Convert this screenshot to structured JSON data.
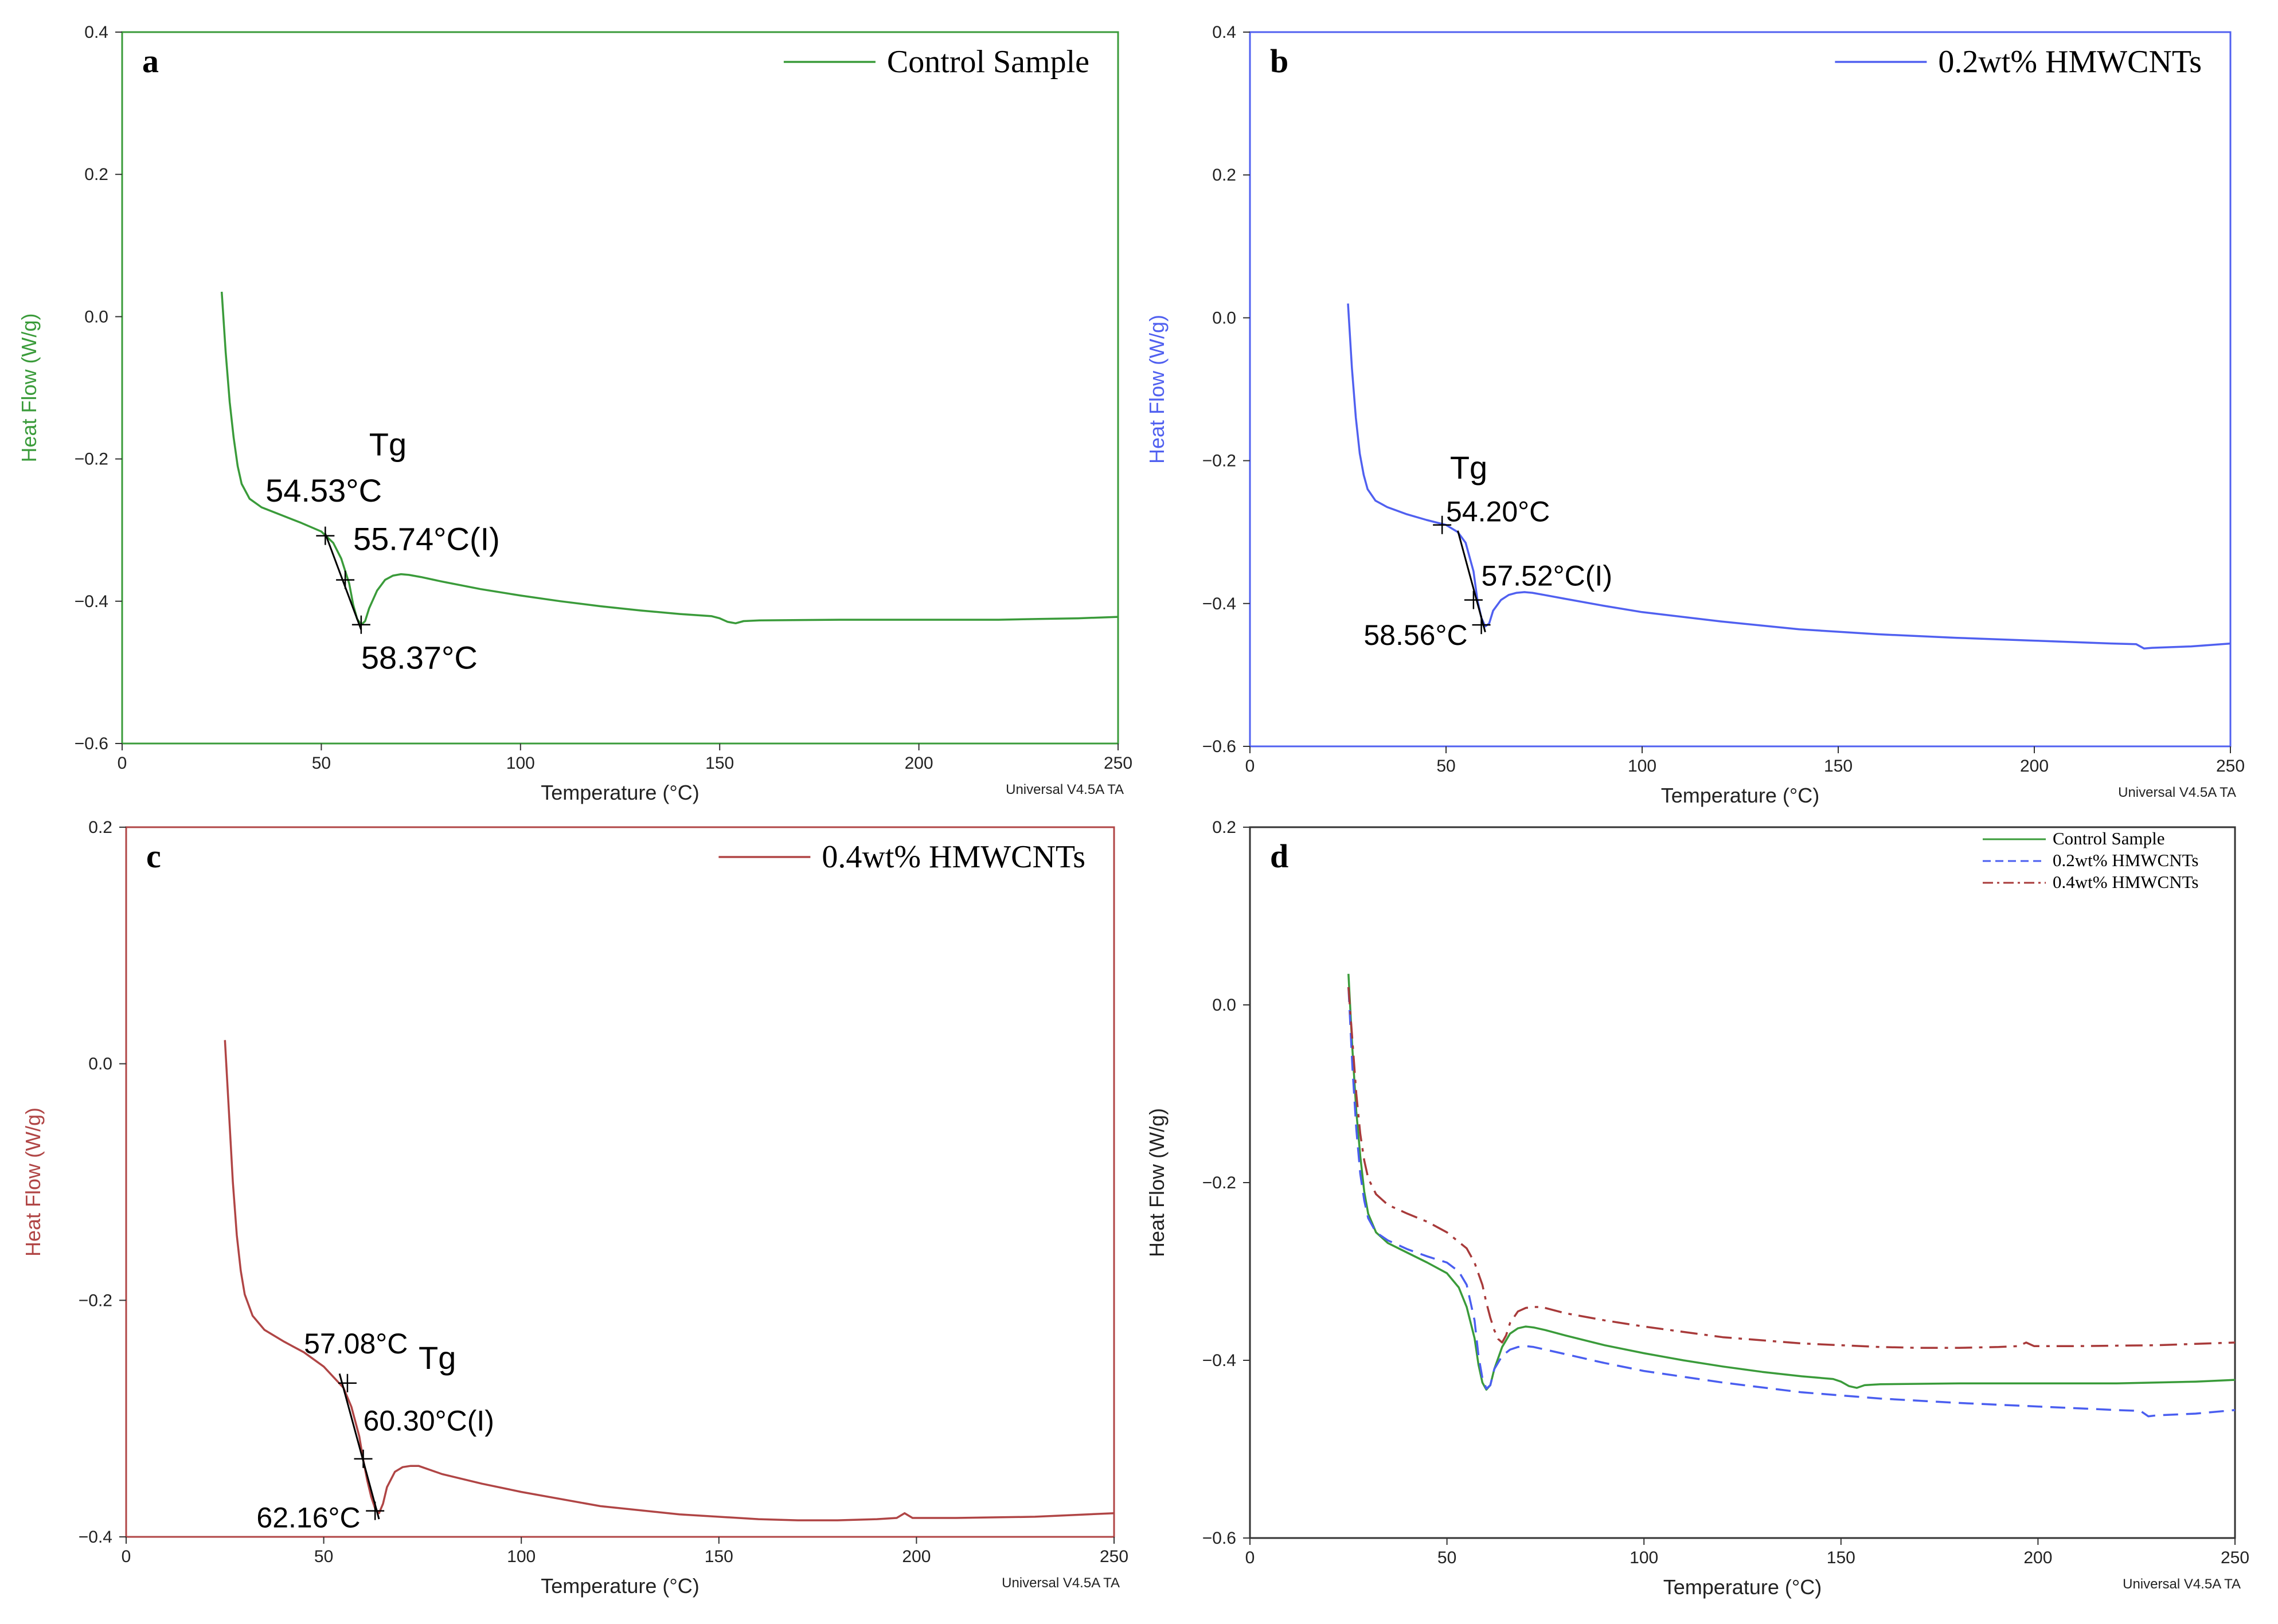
{
  "figure": {
    "footer_text": "Universal V4.5A TA"
  },
  "chart_data": [
    {
      "id": "a",
      "type": "line",
      "panel_label": "a",
      "xlabel": "Temperature (°C)",
      "ylabel": "Heat Flow (W/g)",
      "color": "#3a9b3a",
      "xlim": [
        0,
        250
      ],
      "ylim": [
        -0.6,
        0.4
      ],
      "xticks": [
        0,
        50,
        100,
        150,
        200,
        250
      ],
      "yticks": [
        -0.6,
        -0.4,
        -0.2,
        0.0,
        0.2,
        0.4
      ],
      "ytick_labels": [
        "−0.6",
        "−0.4",
        "−0.2",
        "0.0",
        "0.2",
        "0.4"
      ],
      "legend": {
        "position": "top-right",
        "entries": [
          {
            "label": "Control Sample",
            "style": "solid"
          }
        ]
      },
      "series": [
        {
          "name": "Control Sample",
          "style": "solid",
          "x": [
            25,
            26,
            27,
            28,
            29,
            30,
            32,
            35,
            40,
            45,
            50,
            53,
            55,
            57,
            58,
            59,
            60,
            61,
            62,
            64,
            66,
            68,
            70,
            72,
            75,
            80,
            90,
            100,
            110,
            120,
            130,
            140,
            148,
            150,
            152,
            154,
            156,
            160,
            180,
            200,
            220,
            230,
            240,
            250
          ],
          "y": [
            0.035,
            -0.05,
            -0.12,
            -0.17,
            -0.21,
            -0.235,
            -0.256,
            -0.268,
            -0.279,
            -0.29,
            -0.302,
            -0.318,
            -0.34,
            -0.375,
            -0.405,
            -0.425,
            -0.433,
            -0.428,
            -0.41,
            -0.385,
            -0.37,
            -0.364,
            -0.362,
            -0.363,
            -0.366,
            -0.372,
            -0.383,
            -0.392,
            -0.4,
            -0.407,
            -0.413,
            -0.418,
            -0.421,
            -0.424,
            -0.429,
            -0.431,
            -0.428,
            -0.427,
            -0.426,
            -0.426,
            -0.426,
            -0.425,
            -0.424,
            -0.422
          ]
        }
      ],
      "annotations": [
        {
          "text": "Tg",
          "x": 62,
          "y": -0.195,
          "cls": "annot"
        },
        {
          "text": "54.53°C",
          "x": 36,
          "y": -0.26,
          "cls": "annot"
        },
        {
          "text": "55.74°C(I)",
          "x": 58,
          "y": -0.328,
          "cls": "annot"
        },
        {
          "text": "58.37°C",
          "x": 60,
          "y": -0.495,
          "cls": "annot"
        }
      ],
      "markers": [
        {
          "x": 51,
          "y": -0.308
        },
        {
          "x": 56,
          "y": -0.37
        },
        {
          "x": 60,
          "y": -0.433
        }
      ],
      "tangent": {
        "x": [
          51,
          60
        ],
        "y": [
          -0.305,
          -0.44
        ]
      }
    },
    {
      "id": "b",
      "type": "line",
      "panel_label": "b",
      "xlabel": "Temperature (°C)",
      "ylabel": "Heat Flow (W/g)",
      "color": "#5060f0",
      "xlim": [
        0,
        250
      ],
      "ylim": [
        -0.6,
        0.4
      ],
      "xticks": [
        0,
        50,
        100,
        150,
        200,
        250
      ],
      "yticks": [
        -0.6,
        -0.4,
        -0.2,
        0.0,
        0.2,
        0.4
      ],
      "ytick_labels": [
        "−0.6",
        "−0.4",
        "−0.2",
        "0.0",
        "0.2",
        "0.4"
      ],
      "legend": {
        "position": "top-right",
        "entries": [
          {
            "label": "0.2wt% HMWCNTs",
            "style": "solid"
          }
        ]
      },
      "series": [
        {
          "name": "0.2wt% HMWCNTs",
          "style": "solid",
          "x": [
            25,
            26,
            27,
            28,
            29,
            30,
            32,
            35,
            40,
            45,
            50,
            53,
            55,
            57,
            58,
            59,
            60,
            61,
            62,
            64,
            66,
            68,
            70,
            72,
            75,
            80,
            90,
            100,
            120,
            140,
            160,
            180,
            200,
            220,
            226,
            228,
            230,
            240,
            250
          ],
          "y": [
            0.02,
            -0.07,
            -0.14,
            -0.19,
            -0.22,
            -0.24,
            -0.256,
            -0.265,
            -0.275,
            -0.283,
            -0.29,
            -0.3,
            -0.315,
            -0.355,
            -0.395,
            -0.42,
            -0.432,
            -0.428,
            -0.41,
            -0.395,
            -0.388,
            -0.385,
            -0.384,
            -0.385,
            -0.388,
            -0.393,
            -0.403,
            -0.412,
            -0.425,
            -0.436,
            -0.443,
            -0.448,
            -0.452,
            -0.456,
            -0.457,
            -0.463,
            -0.462,
            -0.46,
            -0.456
          ]
        }
      ],
      "annotations": [
        {
          "text": "Tg",
          "x": 51,
          "y": -0.225,
          "cls": "annot"
        },
        {
          "text": "54.20°C",
          "x": 50,
          "y": -0.285,
          "cls": "annot-sm"
        },
        {
          "text": "57.52°C(I)",
          "x": 59,
          "y": -0.375,
          "cls": "annot-sm"
        },
        {
          "text": "58.56°C",
          "x": 29,
          "y": -0.458,
          "cls": "annot-sm"
        }
      ],
      "markers": [
        {
          "x": 49,
          "y": -0.29
        },
        {
          "x": 57,
          "y": -0.395
        },
        {
          "x": 59,
          "y": -0.43
        }
      ],
      "tangent": {
        "x": [
          53,
          60
        ],
        "y": [
          -0.298,
          -0.44
        ]
      }
    },
    {
      "id": "c",
      "type": "line",
      "panel_label": "c",
      "xlabel": "Temperature (°C)",
      "ylabel": "Heat Flow (W/g)",
      "color": "#b04545",
      "xlim": [
        0,
        250
      ],
      "ylim": [
        -0.4,
        0.2
      ],
      "xticks": [
        0,
        50,
        100,
        150,
        200,
        250
      ],
      "yticks": [
        -0.4,
        -0.2,
        0.0,
        0.2
      ],
      "ytick_labels": [
        "−0.4",
        "−0.2",
        "0.0",
        "0.2"
      ],
      "legend": {
        "position": "top-right",
        "entries": [
          {
            "label": "0.4wt% HMWCNTs",
            "style": "solid"
          }
        ]
      },
      "series": [
        {
          "name": "0.4wt% HMWCNTs",
          "style": "solid",
          "x": [
            25,
            26,
            27,
            28,
            29,
            30,
            32,
            35,
            40,
            45,
            50,
            55,
            57,
            59,
            60,
            61,
            62,
            63,
            64,
            65,
            66,
            68,
            70,
            72,
            74,
            80,
            90,
            100,
            120,
            140,
            160,
            170,
            180,
            190,
            195,
            197,
            199,
            210,
            230,
            250
          ],
          "y": [
            0.02,
            -0.04,
            -0.1,
            -0.145,
            -0.175,
            -0.195,
            -0.213,
            -0.225,
            -0.235,
            -0.244,
            -0.256,
            -0.274,
            -0.29,
            -0.315,
            -0.335,
            -0.352,
            -0.366,
            -0.376,
            -0.38,
            -0.372,
            -0.358,
            -0.345,
            -0.341,
            -0.34,
            -0.34,
            -0.347,
            -0.355,
            -0.362,
            -0.374,
            -0.381,
            -0.385,
            -0.386,
            -0.386,
            -0.385,
            -0.384,
            -0.38,
            -0.384,
            -0.384,
            -0.383,
            -0.38
          ]
        }
      ],
      "annotations": [
        {
          "text": "57.08°C",
          "x": 45,
          "y": -0.245,
          "cls": "annot-sm"
        },
        {
          "text": "Tg",
          "x": 74,
          "y": -0.258,
          "cls": "annot"
        },
        {
          "text": "60.30°C(I)",
          "x": 60,
          "y": -0.31,
          "cls": "annot-sm"
        },
        {
          "text": "62.16°C",
          "x": 33,
          "y": -0.392,
          "cls": "annot-sm"
        }
      ],
      "markers": [
        {
          "x": 56,
          "y": -0.27
        },
        {
          "x": 60,
          "y": -0.334
        },
        {
          "x": 63,
          "y": -0.378
        }
      ],
      "tangent": {
        "x": [
          54,
          64
        ],
        "y": [
          -0.262,
          -0.385
        ]
      }
    },
    {
      "id": "d",
      "type": "line",
      "panel_label": "d",
      "xlabel": "Temperature (°C)",
      "ylabel": "Heat Flow (W/g)",
      "color": "#222222",
      "xlim": [
        0,
        250
      ],
      "ylim": [
        -0.6,
        0.2
      ],
      "xticks": [
        0,
        50,
        100,
        150,
        200,
        250
      ],
      "yticks": [
        -0.6,
        -0.4,
        -0.2,
        0.0,
        0.2
      ],
      "ytick_labels": [
        "−0.6",
        "−0.4",
        "−0.2",
        "0.0",
        "0.2"
      ],
      "legend": {
        "position": "top-right",
        "entries": [
          {
            "label": "Control Sample",
            "style": "solid"
          },
          {
            "label": "0.2wt% HMWCNTs",
            "style": "dashed"
          },
          {
            "label": "0.4wt% HMWCNTs",
            "style": "dashdot"
          }
        ]
      },
      "series": [
        {
          "name": "Control Sample",
          "style": "solid",
          "color": "#3a9b3a",
          "x": [
            25,
            26,
            27,
            28,
            29,
            30,
            32,
            35,
            40,
            45,
            50,
            53,
            55,
            57,
            58,
            59,
            60,
            61,
            62,
            64,
            66,
            68,
            70,
            72,
            75,
            80,
            90,
            100,
            110,
            120,
            130,
            140,
            148,
            150,
            152,
            154,
            156,
            160,
            180,
            200,
            220,
            230,
            240,
            250
          ],
          "y": [
            0.035,
            -0.05,
            -0.12,
            -0.17,
            -0.21,
            -0.235,
            -0.256,
            -0.268,
            -0.279,
            -0.29,
            -0.302,
            -0.318,
            -0.34,
            -0.375,
            -0.405,
            -0.425,
            -0.433,
            -0.428,
            -0.41,
            -0.385,
            -0.37,
            -0.364,
            -0.362,
            -0.363,
            -0.366,
            -0.372,
            -0.383,
            -0.392,
            -0.4,
            -0.407,
            -0.413,
            -0.418,
            -0.421,
            -0.424,
            -0.429,
            -0.431,
            -0.428,
            -0.427,
            -0.426,
            -0.426,
            -0.426,
            -0.425,
            -0.424,
            -0.422
          ]
        },
        {
          "name": "0.2wt% HMWCNTs",
          "style": "dashed",
          "color": "#4a5ef0",
          "x": [
            25,
            26,
            27,
            28,
            29,
            30,
            32,
            35,
            40,
            45,
            50,
            53,
            55,
            57,
            58,
            59,
            60,
            61,
            62,
            64,
            66,
            68,
            70,
            72,
            75,
            80,
            90,
            100,
            120,
            140,
            160,
            180,
            200,
            220,
            226,
            228,
            230,
            240,
            250
          ],
          "y": [
            0.02,
            -0.07,
            -0.14,
            -0.19,
            -0.22,
            -0.24,
            -0.256,
            -0.265,
            -0.275,
            -0.283,
            -0.29,
            -0.3,
            -0.315,
            -0.355,
            -0.395,
            -0.42,
            -0.432,
            -0.428,
            -0.41,
            -0.395,
            -0.388,
            -0.385,
            -0.384,
            -0.385,
            -0.388,
            -0.393,
            -0.403,
            -0.412,
            -0.425,
            -0.436,
            -0.443,
            -0.448,
            -0.452,
            -0.456,
            -0.457,
            -0.463,
            -0.462,
            -0.46,
            -0.456
          ]
        },
        {
          "name": "0.4wt% HMWCNTs",
          "style": "dashdot",
          "color": "#a83a3a",
          "x": [
            25,
            26,
            27,
            28,
            29,
            30,
            32,
            35,
            40,
            45,
            50,
            55,
            57,
            59,
            60,
            61,
            62,
            63,
            64,
            65,
            66,
            68,
            70,
            72,
            74,
            80,
            90,
            100,
            120,
            140,
            160,
            170,
            180,
            190,
            195,
            197,
            199,
            210,
            230,
            250
          ],
          "y": [
            0.02,
            -0.04,
            -0.1,
            -0.145,
            -0.175,
            -0.195,
            -0.213,
            -0.225,
            -0.235,
            -0.244,
            -0.256,
            -0.274,
            -0.29,
            -0.315,
            -0.335,
            -0.352,
            -0.366,
            -0.376,
            -0.38,
            -0.372,
            -0.358,
            -0.345,
            -0.341,
            -0.34,
            -0.34,
            -0.347,
            -0.355,
            -0.362,
            -0.374,
            -0.381,
            -0.385,
            -0.386,
            -0.386,
            -0.385,
            -0.384,
            -0.38,
            -0.384,
            -0.384,
            -0.383,
            -0.38
          ]
        }
      ],
      "annotations": [],
      "markers": []
    }
  ]
}
